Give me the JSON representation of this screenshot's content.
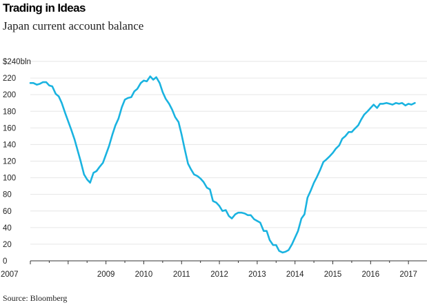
{
  "header": {
    "title": "Trading in Ideas",
    "subtitle": "Japan current account balance"
  },
  "footer": {
    "source": "Source: Bloomberg"
  },
  "colors": {
    "line": "#1ab3e0",
    "grid": "#e6e6e6",
    "axis": "#333333"
  },
  "chart_data": {
    "type": "line",
    "title": "Japan current account balance",
    "xlabel": "",
    "ylabel": "",
    "ylim": [
      0,
      240
    ],
    "xlim": [
      2007.0,
      2017.5
    ],
    "grid": "horizontal",
    "yticks": [
      0,
      20,
      40,
      60,
      80,
      100,
      120,
      140,
      160,
      180,
      200,
      220,
      240
    ],
    "ytick_labels": [
      "0",
      "20",
      "40",
      "60",
      "80",
      "100",
      "120",
      "140",
      "160",
      "180",
      "200",
      "220",
      "$240bln"
    ],
    "xticks": [
      2007,
      2009,
      2010,
      2011,
      2012,
      2013,
      2014,
      2015,
      2016,
      2017
    ],
    "xtick_labels": [
      "2007",
      "2009",
      "2010",
      "2011",
      "2012",
      "2013",
      "2014",
      "2015",
      "2016",
      "2017"
    ],
    "series": [
      {
        "points": [
          [
            2007.0,
            214
          ],
          [
            2007.08,
            214
          ],
          [
            2007.17,
            212
          ],
          [
            2007.25,
            213
          ],
          [
            2007.33,
            215
          ],
          [
            2007.42,
            215
          ],
          [
            2007.5,
            211
          ],
          [
            2007.58,
            210
          ],
          [
            2007.67,
            201
          ],
          [
            2007.75,
            198
          ],
          [
            2007.83,
            190
          ],
          [
            2007.92,
            178
          ],
          [
            2008.0,
            168
          ],
          [
            2008.08,
            158
          ],
          [
            2008.17,
            146
          ],
          [
            2008.25,
            133
          ],
          [
            2008.33,
            120
          ],
          [
            2008.42,
            104
          ],
          [
            2008.5,
            98
          ],
          [
            2008.58,
            94
          ],
          [
            2008.67,
            106
          ],
          [
            2008.75,
            108
          ],
          [
            2008.83,
            113
          ],
          [
            2008.92,
            118
          ],
          [
            2009.0,
            128
          ],
          [
            2009.08,
            138
          ],
          [
            2009.17,
            152
          ],
          [
            2009.25,
            163
          ],
          [
            2009.33,
            171
          ],
          [
            2009.42,
            185
          ],
          [
            2009.5,
            194
          ],
          [
            2009.58,
            196
          ],
          [
            2009.67,
            197
          ],
          [
            2009.75,
            204
          ],
          [
            2009.83,
            207
          ],
          [
            2009.92,
            214
          ],
          [
            2010.0,
            217
          ],
          [
            2010.08,
            216
          ],
          [
            2010.17,
            222
          ],
          [
            2010.25,
            218
          ],
          [
            2010.33,
            221
          ],
          [
            2010.42,
            214
          ],
          [
            2010.5,
            203
          ],
          [
            2010.58,
            195
          ],
          [
            2010.67,
            189
          ],
          [
            2010.75,
            182
          ],
          [
            2010.83,
            173
          ],
          [
            2010.92,
            167
          ],
          [
            2011.0,
            152
          ],
          [
            2011.08,
            135
          ],
          [
            2011.17,
            117
          ],
          [
            2011.25,
            110
          ],
          [
            2011.33,
            104
          ],
          [
            2011.42,
            102
          ],
          [
            2011.5,
            99
          ],
          [
            2011.58,
            95
          ],
          [
            2011.67,
            88
          ],
          [
            2011.75,
            86
          ],
          [
            2011.83,
            72
          ],
          [
            2011.92,
            70
          ],
          [
            2012.0,
            66
          ],
          [
            2012.08,
            60
          ],
          [
            2012.17,
            61
          ],
          [
            2012.25,
            54
          ],
          [
            2012.33,
            51
          ],
          [
            2012.42,
            56
          ],
          [
            2012.5,
            58
          ],
          [
            2012.58,
            58
          ],
          [
            2012.67,
            57
          ],
          [
            2012.75,
            55
          ],
          [
            2012.83,
            55
          ],
          [
            2012.92,
            50
          ],
          [
            2013.0,
            48
          ],
          [
            2013.08,
            46
          ],
          [
            2013.17,
            36
          ],
          [
            2013.25,
            36
          ],
          [
            2013.33,
            25
          ],
          [
            2013.42,
            19
          ],
          [
            2013.5,
            19
          ],
          [
            2013.58,
            12
          ],
          [
            2013.67,
            10
          ],
          [
            2013.75,
            11
          ],
          [
            2013.83,
            13
          ],
          [
            2013.92,
            20
          ],
          [
            2014.0,
            28
          ],
          [
            2014.08,
            36
          ],
          [
            2014.17,
            51
          ],
          [
            2014.25,
            56
          ],
          [
            2014.33,
            76
          ],
          [
            2014.42,
            85
          ],
          [
            2014.5,
            94
          ],
          [
            2014.58,
            101
          ],
          [
            2014.67,
            110
          ],
          [
            2014.75,
            119
          ],
          [
            2014.83,
            122
          ],
          [
            2014.92,
            126
          ],
          [
            2015.0,
            130
          ],
          [
            2015.08,
            135
          ],
          [
            2015.17,
            139
          ],
          [
            2015.25,
            147
          ],
          [
            2015.33,
            150
          ],
          [
            2015.42,
            155
          ],
          [
            2015.5,
            155
          ],
          [
            2015.58,
            159
          ],
          [
            2015.67,
            163
          ],
          [
            2015.75,
            170
          ],
          [
            2015.83,
            176
          ],
          [
            2015.92,
            180
          ],
          [
            2016.0,
            184
          ],
          [
            2016.08,
            188
          ],
          [
            2016.17,
            184
          ],
          [
            2016.25,
            189
          ],
          [
            2016.33,
            189
          ],
          [
            2016.42,
            190
          ],
          [
            2016.5,
            189
          ],
          [
            2016.58,
            188
          ],
          [
            2016.67,
            190
          ],
          [
            2016.75,
            189
          ],
          [
            2016.83,
            190
          ],
          [
            2016.92,
            187
          ],
          [
            2017.0,
            189
          ],
          [
            2017.08,
            188
          ],
          [
            2017.17,
            190
          ]
        ]
      }
    ]
  }
}
